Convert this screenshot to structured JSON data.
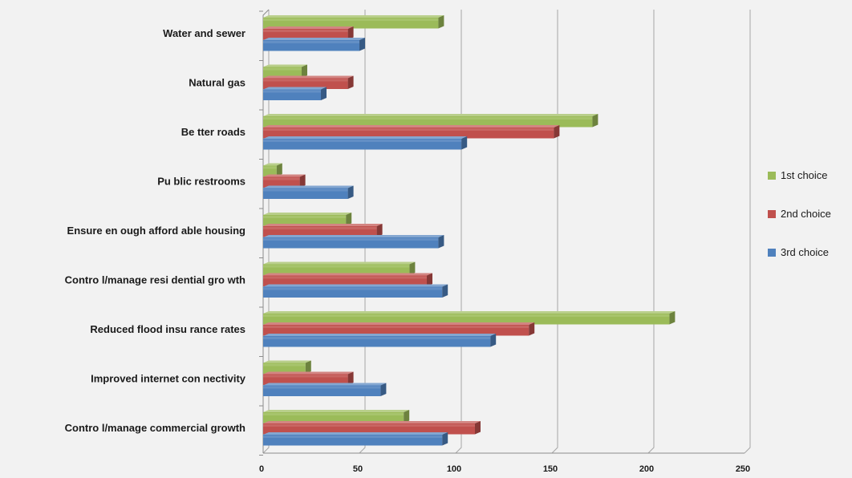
{
  "chart_data": {
    "type": "bar",
    "orientation": "horizontal",
    "title": "",
    "xlabel": "",
    "ylabel": "",
    "xlim": [
      0,
      250
    ],
    "x_ticks": [
      "0",
      "50",
      "100",
      "150",
      "200",
      "250"
    ],
    "grid": true,
    "legend_position": "right",
    "categories": [
      "Water and sewer",
      "Natural gas",
      "Be tter roads",
      "Pu blic restrooms",
      "Ensure en ough afford able housing",
      "Contro l/manage resi dential gro wth",
      "Reduced  flood insu rance rates",
      "Improved internet con nectivity",
      "Contro l/manage commercial growth"
    ],
    "series": [
      {
        "name": "1st choice",
        "color": "#9bbb59",
        "values": [
          91,
          20,
          171,
          7,
          43,
          76,
          211,
          22,
          73
        ]
      },
      {
        "name": "2nd choice",
        "color": "#c0504d",
        "values": [
          44,
          44,
          151,
          19,
          59,
          85,
          138,
          44,
          110
        ]
      },
      {
        "name": "3rd choice",
        "color": "#4f81bd",
        "values": [
          50,
          30,
          103,
          44,
          91,
          93,
          118,
          61,
          93
        ]
      }
    ]
  }
}
